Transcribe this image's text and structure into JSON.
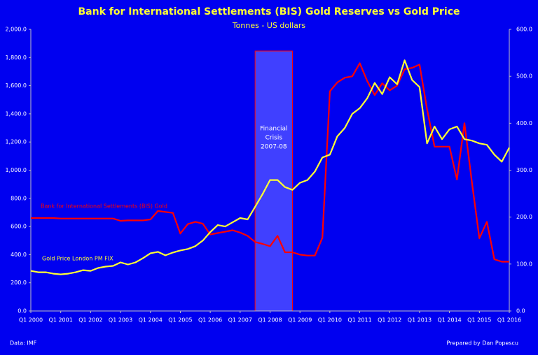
{
  "chart_data": {
    "type": "line",
    "title": "Bank for International Settlements (BIS) Gold Reserves vs Gold Price",
    "subtitle": "Tonnes - US dollars",
    "source": "Data: IMF",
    "credit": "Prepared by Dan Popescu",
    "categories": [
      "Q1 2000",
      null,
      null,
      null,
      "Q1 2001",
      null,
      null,
      null,
      "Q1 2002",
      null,
      null,
      null,
      "Q1 2003",
      null,
      null,
      null,
      "Q1 2004",
      null,
      null,
      null,
      "Q1 2005",
      null,
      null,
      null,
      "Q1 2006",
      null,
      null,
      null,
      "Q1 2007",
      null,
      null,
      null,
      "Q1 2008",
      null,
      null,
      null,
      "Q1 2009",
      null,
      null,
      null,
      "Q1 2010",
      null,
      null,
      null,
      "Q1 2011",
      null,
      null,
      null,
      "Q1 2012",
      null,
      null,
      null,
      "Q1 2013",
      null,
      null,
      null,
      "Q1 2014",
      null,
      null,
      null,
      "Q1 2015",
      null,
      null,
      null,
      "Q1 2016"
    ],
    "series": [
      {
        "name": "Bank for International Settlements (BIS) Gold",
        "color": "#ff0000",
        "axis": "y2",
        "values": [
          198,
          198,
          198,
          198,
          197,
          197,
          197,
          197,
          197,
          197,
          197,
          197,
          192,
          193,
          193,
          193,
          195,
          213,
          211,
          209,
          165,
          185,
          190,
          186,
          163,
          166,
          169,
          172,
          167,
          160,
          147,
          143,
          138,
          160,
          125,
          125,
          120,
          118,
          118,
          156,
          468,
          487,
          497,
          500,
          528,
          490,
          460,
          485,
          470,
          480,
          515,
          518,
          525,
          430,
          350,
          350,
          350,
          280,
          400,
          275,
          155,
          190,
          110,
          105,
          105
        ]
      },
      {
        "name": "Gold Price London PM FIX",
        "color": "#ffff33",
        "values": [
          285,
          275,
          275,
          265,
          260,
          265,
          275,
          290,
          285,
          305,
          315,
          320,
          345,
          330,
          345,
          375,
          410,
          420,
          395,
          415,
          430,
          440,
          460,
          500,
          560,
          610,
          600,
          630,
          660,
          650,
          740,
          830,
          930,
          930,
          880,
          860,
          910,
          930,
          990,
          1090,
          1110,
          1240,
          1300,
          1400,
          1440,
          1510,
          1620,
          1540,
          1660,
          1610,
          1780,
          1640,
          1590,
          1190,
          1310,
          1220,
          1290,
          1310,
          1220,
          1210,
          1190,
          1180,
          1110,
          1060,
          1160
        ]
      }
    ],
    "ylim": [
      0,
      2000
    ],
    "yticks": [
      {
        "value": 0,
        "label": "0.0"
      },
      {
        "value": 200,
        "label": "200.0"
      },
      {
        "value": 400,
        "label": "400.0"
      },
      {
        "value": 600,
        "label": "600.0"
      },
      {
        "value": 800,
        "label": "800.0"
      },
      {
        "value": 1000,
        "label": "1,000.0"
      },
      {
        "value": 1200,
        "label": "1,200.0"
      },
      {
        "value": 1400,
        "label": "1,400.0"
      },
      {
        "value": 1600,
        "label": "1,600.0"
      },
      {
        "value": 1800,
        "label": "1,800.0"
      },
      {
        "value": 2000,
        "label": "2,000.0"
      }
    ],
    "y2lim": [
      0,
      600
    ],
    "y2ticks": [
      {
        "value": 0,
        "label": "0.0"
      },
      {
        "value": 100,
        "label": "100.0"
      },
      {
        "value": 200,
        "label": "200.0"
      },
      {
        "value": 300,
        "label": "300.0"
      },
      {
        "value": 400,
        "label": "400.0"
      },
      {
        "value": 500,
        "label": "500.0"
      },
      {
        "value": 600,
        "label": "600.0"
      }
    ],
    "highlight": {
      "lines": [
        "Financial",
        "Crisis",
        "2007-08"
      ],
      "start": 30,
      "end": 35,
      "color": "#4040ff"
    },
    "grid": false
  }
}
